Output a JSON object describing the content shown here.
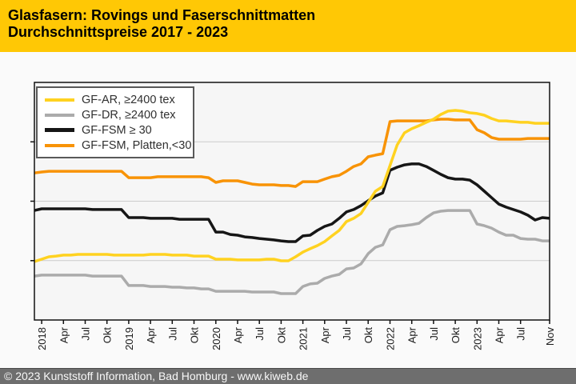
{
  "header": {
    "title_line1": "Glasfasern: Rovings und Faserschnittmatten",
    "title_line2": "Durchschnittspreise 2017 - 2023",
    "bg_color": "#FFC805",
    "text_color": "#000000"
  },
  "footer": {
    "text": "© 2023 Kunststoff Information, Bad Homburg - www.kiweb.de",
    "bg_color": "#6E6E6E",
    "text_color": "#F8F8F8"
  },
  "chart_data": {
    "type": "line",
    "title": "Glasfasern: Rovings und Faserschnittmatten — Durchschnittspreise 2017 - 2023",
    "legend_position": "top-left",
    "colors": {
      "plot_bg": "#F6F6F6",
      "region_bg": "#FAFAFA",
      "grid": "#CCCCCC",
      "border": "#111111",
      "tick_label": "#1A1A1A"
    },
    "x": {
      "unit": "Monat",
      "first_point": "Dez 2017",
      "last_point": "Nov 2023",
      "points": 72,
      "tick_labels": [
        {
          "label": "2018",
          "i": 1
        },
        {
          "label": "Apr",
          "i": 4
        },
        {
          "label": "Jul",
          "i": 7
        },
        {
          "label": "Okt",
          "i": 10
        },
        {
          "label": "2019",
          "i": 13
        },
        {
          "label": "Apr",
          "i": 16
        },
        {
          "label": "Jul",
          "i": 19
        },
        {
          "label": "Okt",
          "i": 22
        },
        {
          "label": "2020",
          "i": 25
        },
        {
          "label": "Apr",
          "i": 28
        },
        {
          "label": "Jul",
          "i": 31
        },
        {
          "label": "Okt",
          "i": 34
        },
        {
          "label": "2021",
          "i": 37
        },
        {
          "label": "Apr",
          "i": 40
        },
        {
          "label": "Jul",
          "i": 43
        },
        {
          "label": "Okt",
          "i": 46
        },
        {
          "label": "2022",
          "i": 49
        },
        {
          "label": "Apr",
          "i": 52
        },
        {
          "label": "Jul",
          "i": 55
        },
        {
          "label": "Okt",
          "i": 58
        },
        {
          "label": "2023",
          "i": 61
        },
        {
          "label": "Apr",
          "i": 64
        },
        {
          "label": "Jul",
          "i": 67
        },
        {
          "label": "Nov",
          "i": 71
        }
      ]
    },
    "y": {
      "tick_labels": [],
      "note": "Originalgrafik ohne Y-Achsenbeschriftung; Werte in Prozent der Plothoehe (0 = untere Achse, 100 = obere Kante)",
      "gridlines_pct": [
        25,
        50,
        75
      ]
    },
    "draw_order": [
      1,
      2,
      3,
      0
    ],
    "series": [
      {
        "name": "GF-AR, ≥2400 tex",
        "color": "#FFD220",
        "values": [
          24.6,
          25.6,
          26.6,
          26.9,
          27.3,
          27.3,
          27.6,
          27.6,
          27.6,
          27.6,
          27.6,
          27.3,
          27.3,
          27.3,
          27.3,
          27.3,
          27.6,
          27.6,
          27.6,
          27.3,
          27.3,
          27.3,
          26.9,
          26.9,
          26.9,
          25.6,
          25.6,
          25.6,
          25.3,
          25.3,
          25.3,
          25.3,
          25.6,
          25.6,
          24.9,
          24.9,
          26.6,
          28.6,
          30.0,
          31.3,
          33.0,
          35.4,
          37.7,
          41.4,
          42.8,
          44.8,
          49.5,
          54.2,
          56.2,
          65.0,
          73.7,
          78.8,
          80.5,
          81.8,
          83.2,
          84.5,
          86.5,
          87.9,
          88.2,
          87.9,
          87.2,
          86.9,
          86.2,
          84.8,
          83.8,
          83.8,
          83.5,
          83.2,
          83.2,
          82.8,
          82.8,
          82.8
        ]
      },
      {
        "name": "GF-DR, ≥2400 tex",
        "color": "#ABABAB",
        "values": [
          18.5,
          18.9,
          18.9,
          18.9,
          18.9,
          18.9,
          18.9,
          18.9,
          18.5,
          18.5,
          18.5,
          18.5,
          18.5,
          14.5,
          14.5,
          14.5,
          14.1,
          14.1,
          14.1,
          13.8,
          13.8,
          13.5,
          13.5,
          13.1,
          13.1,
          12.1,
          12.1,
          12.1,
          12.1,
          12.1,
          11.8,
          11.8,
          11.8,
          11.8,
          11.1,
          11.1,
          11.1,
          14.1,
          15.2,
          15.5,
          17.5,
          18.5,
          19.2,
          21.5,
          21.9,
          23.6,
          27.9,
          30.6,
          31.6,
          38.0,
          39.4,
          39.7,
          40.1,
          40.7,
          43.1,
          45.1,
          45.8,
          46.1,
          46.1,
          46.1,
          46.1,
          40.4,
          39.7,
          38.7,
          37.0,
          35.7,
          35.7,
          34.3,
          34.0,
          34.0,
          33.3,
          33.3
        ]
      },
      {
        "name": "GF-FSM ≥ 30",
        "color": "#161616",
        "values": [
          46.1,
          46.8,
          46.8,
          46.8,
          46.8,
          46.8,
          46.8,
          46.8,
          46.5,
          46.5,
          46.5,
          46.5,
          46.5,
          43.1,
          43.1,
          43.1,
          42.8,
          42.8,
          42.8,
          42.8,
          42.4,
          42.4,
          42.4,
          42.4,
          42.4,
          37.0,
          37.0,
          36.0,
          35.7,
          35.0,
          34.7,
          34.3,
          34.0,
          33.7,
          33.3,
          33.0,
          33.0,
          35.4,
          35.7,
          37.7,
          39.4,
          40.4,
          42.8,
          45.5,
          46.5,
          48.1,
          50.2,
          52.2,
          53.5,
          63.0,
          64.3,
          65.3,
          65.7,
          65.7,
          64.6,
          63.0,
          61.3,
          59.9,
          59.3,
          59.3,
          58.9,
          56.9,
          54.2,
          51.5,
          48.8,
          47.5,
          46.5,
          45.5,
          44.1,
          42.1,
          43.1,
          42.8
        ]
      },
      {
        "name": "GF-FSM, Platten,<30",
        "color": "#F89306",
        "values": [
          61.9,
          62.3,
          62.6,
          62.6,
          62.6,
          62.6,
          62.6,
          62.6,
          62.6,
          62.6,
          62.6,
          62.6,
          62.6,
          59.9,
          59.9,
          59.9,
          59.9,
          60.3,
          60.3,
          60.3,
          60.3,
          60.3,
          60.3,
          60.3,
          59.9,
          57.9,
          58.6,
          58.6,
          58.6,
          57.9,
          57.2,
          56.9,
          56.9,
          56.9,
          56.6,
          56.6,
          56.2,
          58.2,
          58.2,
          58.2,
          59.3,
          60.3,
          60.9,
          62.6,
          64.6,
          65.7,
          68.7,
          69.4,
          70.0,
          83.5,
          83.8,
          83.8,
          83.8,
          83.8,
          83.8,
          84.2,
          84.5,
          84.5,
          84.2,
          84.2,
          84.2,
          80.1,
          78.8,
          76.8,
          76.1,
          76.1,
          76.1,
          76.1,
          76.4,
          76.4,
          76.4,
          76.4
        ]
      }
    ]
  }
}
